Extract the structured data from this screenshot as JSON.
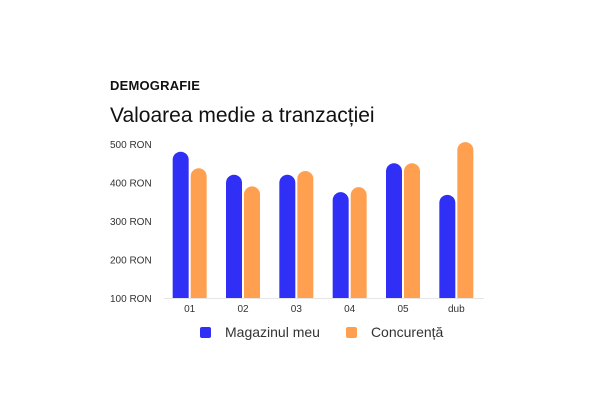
{
  "header": {
    "kicker": "DEMOGRAFIE",
    "title": "Valoarea medie a tranzacției"
  },
  "colors": {
    "series1": "#2f2ff5",
    "series2": "#ffa050",
    "axis": "#e6e6e6"
  },
  "chart_data": {
    "type": "bar",
    "title": "Valoarea medie a tranzacției",
    "xlabel": "",
    "ylabel": "",
    "categories": [
      "01",
      "02",
      "03",
      "04",
      "05",
      "dub"
    ],
    "yticks": [
      "100 RON",
      "200 RON",
      "300 RON",
      "400 RON",
      "500 RON"
    ],
    "ytick_values": [
      100,
      200,
      300,
      400,
      500
    ],
    "ylim": [
      100,
      500
    ],
    "grid": false,
    "legend_position": "bottom",
    "series": [
      {
        "name": "Magazinul meu",
        "values": [
          480,
          420,
          420,
          375,
          450,
          368
        ]
      },
      {
        "name": "Concurență",
        "values": [
          437,
          390,
          430,
          388,
          450,
          505
        ]
      }
    ]
  }
}
